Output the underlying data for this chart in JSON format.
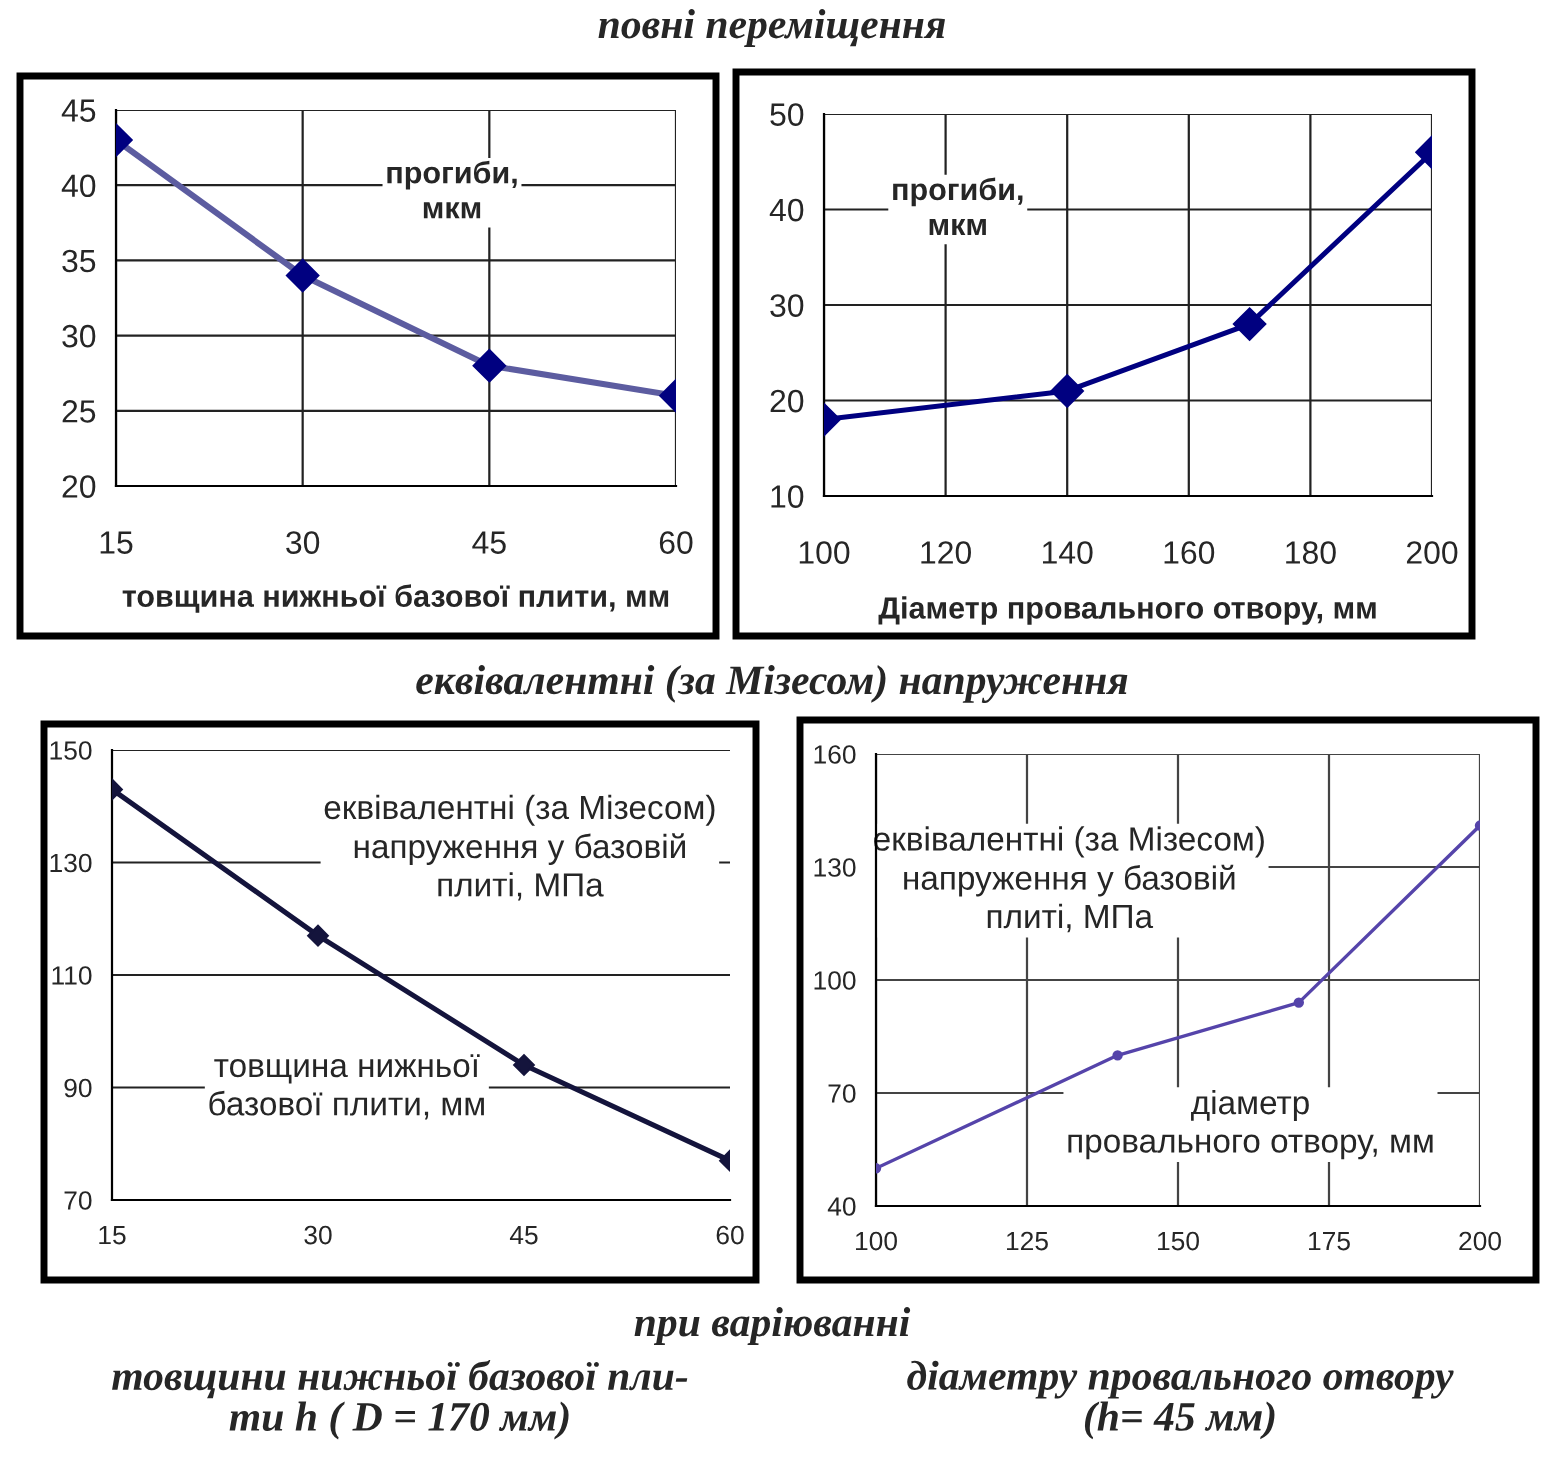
{
  "chart_data": [
    {
      "type": "line",
      "title": "повні переміщення",
      "xlabel": "товщина нижньої базової плити, мм",
      "ylabel": "прогиби,\nмкм",
      "x": [
        15,
        30,
        45,
        60
      ],
      "series": [
        {
          "color": "#5c5ca0",
          "values": [
            43,
            34,
            28,
            26
          ]
        }
      ],
      "xlim": [
        15,
        60
      ],
      "xticks": [
        15,
        30,
        45,
        60
      ],
      "ylim": [
        20,
        45
      ],
      "yticks": [
        20,
        25,
        30,
        35,
        40,
        45
      ],
      "grid": true,
      "marker": "diamond",
      "line_style": "solid"
    },
    {
      "type": "line",
      "xlabel": "Діаметр провального отвору, мм",
      "ylabel": "прогиби,\nмкм",
      "x": [
        100,
        140,
        170,
        200
      ],
      "series": [
        {
          "color": "#000080",
          "values": [
            18,
            21,
            28,
            46
          ]
        }
      ],
      "xlim": [
        100,
        200
      ],
      "xticks": [
        100,
        120,
        140,
        160,
        180,
        200
      ],
      "ylim": [
        10,
        50
      ],
      "yticks": [
        10,
        20,
        30,
        40,
        50
      ],
      "grid": true,
      "marker": "diamond",
      "line_style": "solid"
    },
    {
      "type": "line",
      "title": "еквівалентні (за Мізесом) напруження",
      "xlabel": "товщина нижньої\nбазової плити, мм",
      "ylabel": "еквівалентні (за Мізесом)\nнапруження у базовій\nплиті, МПа",
      "x": [
        15,
        30,
        45,
        60
      ],
      "series": [
        {
          "color": "#14143c",
          "values": [
            143,
            117,
            94,
            77
          ]
        }
      ],
      "xlim": [
        15,
        60
      ],
      "xticks": [
        15,
        30,
        45,
        60
      ],
      "ylim": [
        70,
        150
      ],
      "yticks": [
        70,
        90,
        110,
        130,
        150
      ],
      "grid": "y",
      "marker": "diamond",
      "line_style": "solid",
      "annotations": [
        "при варіюванні",
        "товщини нижньої базової пли-\nти h ( D = 170 мм)"
      ]
    },
    {
      "type": "line",
      "xlabel": "діаметр\nпровального отвору, мм",
      "ylabel": "еквівалентні (за Мізесом)\nнапруження у базовій\nплиті, МПа",
      "x": [
        100,
        140,
        170,
        200
      ],
      "series": [
        {
          "color": "#5544aa",
          "values": [
            50,
            80,
            94,
            141
          ]
        }
      ],
      "xlim": [
        100,
        200
      ],
      "xticks": [
        100,
        125,
        150,
        175,
        200
      ],
      "ylim": [
        40,
        160
      ],
      "yticks": [
        40,
        70,
        100,
        130,
        160
      ],
      "grid": true,
      "marker": "circle",
      "line_style": "solid",
      "annotations": [
        "діаметру провального отвору\n(h= 45 мм)"
      ]
    }
  ]
}
